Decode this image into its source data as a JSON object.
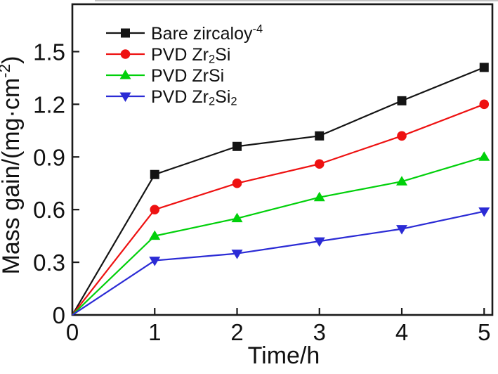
{
  "figure": {
    "background": "#ffffff",
    "top_edge_artifact_color": "#c4c4c4"
  },
  "chart_data": {
    "type": "line",
    "title": "",
    "xlabel": "Time/h",
    "ylabel": "Mass gain/(mg·cm⁻²)",
    "x": [
      0,
      1,
      2,
      3,
      4,
      5
    ],
    "xlim": [
      0,
      5.1
    ],
    "ylim": [
      0,
      1.77
    ],
    "x_ticks": [
      0,
      1,
      2,
      3,
      4,
      5
    ],
    "x_tick_labels": [
      "0",
      "1",
      "2",
      "3",
      "4",
      "5"
    ],
    "y_ticks": [
      0,
      0.3,
      0.6,
      0.9,
      1.2,
      1.5
    ],
    "y_tick_labels": [
      "0",
      "0.3",
      "0.6",
      "0.9",
      "1.2",
      "1.5"
    ],
    "grid": false,
    "legend_position": "top-left",
    "axis_color": "#1a1a1a",
    "series": [
      {
        "name": "Bare zircaloy⁻⁴",
        "color": "#141414",
        "marker": "square",
        "values": [
          0,
          0.8,
          0.96,
          1.02,
          1.22,
          1.41
        ]
      },
      {
        "name": "PVD Zr₂Si",
        "color": "#ee1111",
        "marker": "circle",
        "values": [
          0,
          0.6,
          0.75,
          0.86,
          1.02,
          1.2
        ]
      },
      {
        "name": "PVD ZrSi",
        "color": "#00d00a",
        "marker": "triangle-up",
        "values": [
          0,
          0.45,
          0.55,
          0.67,
          0.76,
          0.9
        ]
      },
      {
        "name": "PVD Zr₂Si₂",
        "color": "#2b2bd5",
        "marker": "triangle-down",
        "values": [
          0,
          0.31,
          0.35,
          0.42,
          0.49,
          0.59
        ]
      }
    ]
  }
}
